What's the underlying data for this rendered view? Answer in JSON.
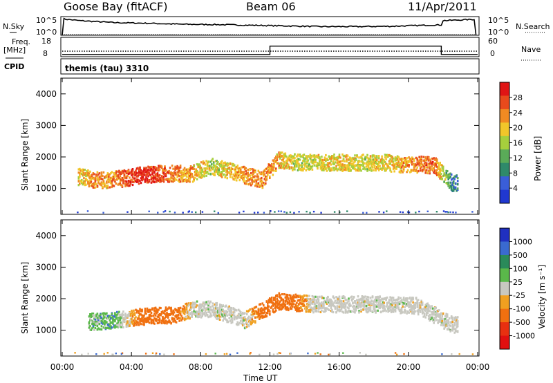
{
  "header": {
    "station": "Goose Bay (fitACF)",
    "beam": "Beam 06",
    "date": "11/Apr/2011"
  },
  "panels": {
    "nsky_label": "N.Sky",
    "nsky_ticks": [
      "10^5",
      "10^0"
    ],
    "nsearch_label": "N.Search",
    "nsearch_ticks": [
      "10^5",
      "10^0"
    ],
    "freq_label": "Freq.",
    "freq_unit": "[MHz]",
    "freq_ticks": [
      "18",
      "8"
    ],
    "nave_label": "Nave",
    "nave_ticks": [
      "60",
      "0"
    ],
    "cpid_label": "CPID",
    "cpid_value": "themis (tau) 3310"
  },
  "axes": {
    "ylabel": "Slant Range [km]",
    "yticks": [
      "4000",
      "3000",
      "2000",
      "1000"
    ],
    "xlabel": "Time UT",
    "xticks": [
      "00:00",
      "04:00",
      "08:00",
      "12:00",
      "16:00",
      "20:00",
      "00:00"
    ]
  },
  "colorbars": {
    "power": {
      "label": "Power [dB]",
      "ticks": [
        "28",
        "24",
        "20",
        "16",
        "12",
        "8",
        "4"
      ],
      "colors": [
        "#2038d0",
        "#3a5ed8",
        "#2f8a6a",
        "#5aab58",
        "#a6cf3d",
        "#f1c62a",
        "#f08a22",
        "#e84a1c",
        "#e01515"
      ]
    },
    "velocity": {
      "label": "Velocity [m s⁻¹]",
      "ticks": [
        "1000",
        "500",
        "100",
        "25",
        "-25",
        "-100",
        "-500",
        "-1000"
      ],
      "colors": [
        "#2030c0",
        "#3a6ad0",
        "#2a8a5a",
        "#5ab84a",
        "#c8c8c0",
        "#f0a020",
        "#f07010",
        "#e83010",
        "#e01010"
      ]
    }
  },
  "chart_data": [
    {
      "type": "line",
      "title": "Goose Bay (fitACF) Beam 06 11/Apr/2011",
      "xlabel": "Time UT",
      "ylabel": "N.Sky",
      "x": [
        0.0,
        0.1,
        1.0,
        3.0,
        5.0,
        7.0,
        9.0,
        11.0,
        13.0,
        15.0,
        17.0,
        19.0,
        21.0,
        21.9,
        22.0,
        23.9
      ],
      "y_log10": [
        0.0,
        4.7,
        4.2,
        3.6,
        3.4,
        3.1,
        3.0,
        2.8,
        2.6,
        2.4,
        2.4,
        2.5,
        2.8,
        2.9,
        4.2,
        4.6
      ],
      "xlim": [
        0,
        24
      ],
      "ylim_log10": [
        0,
        5
      ]
    },
    {
      "type": "line",
      "ylabel": "Nave",
      "x": [
        0.0,
        12.0,
        12.0,
        21.9,
        21.9,
        24.0
      ],
      "y": [
        5,
        5,
        33,
        33,
        5,
        5
      ],
      "ylim": [
        0,
        60
      ]
    },
    {
      "type": "heatmap",
      "ylabel": "Slant Range [km]",
      "xlabel": "Time UT",
      "xlim": [
        0,
        24
      ],
      "ylim": [
        180,
        4500
      ],
      "colorbar": "Power [dB]",
      "clim": [
        0,
        30
      ],
      "x_hours": [
        1.2,
        1.8,
        2.5,
        3.5,
        4.5,
        5.5,
        6.5,
        7.5,
        8.5,
        9.5,
        10.5,
        11.5,
        12.5,
        13.5,
        14.5,
        15.5,
        16.5,
        17.5,
        18.5,
        19.5,
        20.5,
        21.5,
        22.5
      ],
      "echo_band_center_km": [
        1400,
        1300,
        1300,
        1350,
        1450,
        1500,
        1500,
        1500,
        1750,
        1600,
        1450,
        1300,
        1950,
        1850,
        1850,
        1850,
        1850,
        1850,
        1850,
        1800,
        1800,
        1750,
        1200
      ],
      "peak_power_db": [
        18,
        22,
        20,
        24,
        28,
        26,
        22,
        20,
        16,
        18,
        22,
        22,
        20,
        16,
        16,
        18,
        18,
        16,
        18,
        20,
        22,
        24,
        8
      ]
    },
    {
      "type": "heatmap",
      "ylabel": "Slant Range [km]",
      "xlabel": "Time UT",
      "xlim": [
        0,
        24
      ],
      "ylim": [
        180,
        4500
      ],
      "colorbar": "Velocity [m s⁻¹]",
      "clim": [
        -1000,
        1000
      ],
      "x_hours": [
        1.8,
        3.0,
        4.5,
        5.5,
        6.5,
        7.5,
        8.5,
        9.5,
        10.5,
        12.5,
        14.5,
        16.5,
        18.5,
        20.5,
        22.5
      ],
      "echo_band_center_km": [
        1300,
        1350,
        1450,
        1500,
        1500,
        1700,
        1700,
        1550,
        1350,
        1950,
        1850,
        1850,
        1850,
        1800,
        1200
      ],
      "typical_velocity_ms": [
        60,
        80,
        -150,
        -200,
        -180,
        0,
        0,
        0,
        0,
        -300,
        0,
        0,
        0,
        0,
        0
      ]
    }
  ]
}
